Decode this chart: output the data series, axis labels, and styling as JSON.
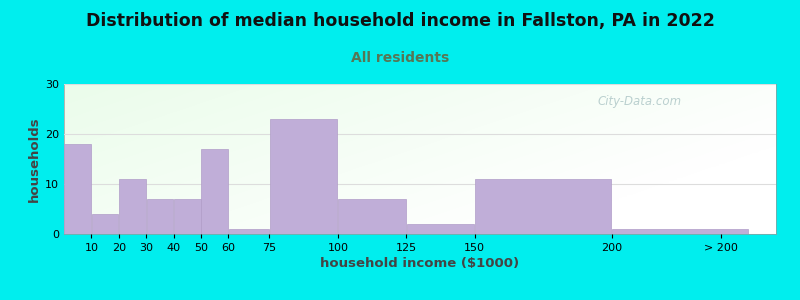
{
  "title": "Distribution of median household income in Fallston, PA in 2022",
  "subtitle": "All residents",
  "xlabel": "household income ($1000)",
  "ylabel": "households",
  "background_color": "#00EEEE",
  "bar_color": "#c0aed8",
  "bar_edge_color": "#b09cc8",
  "categories": [
    "10",
    "20",
    "30",
    "40",
    "50",
    "60",
    "75",
    "100",
    "125",
    "150",
    "200",
    "> 200"
  ],
  "values": [
    18,
    4,
    11,
    7,
    7,
    17,
    1,
    23,
    7,
    2,
    11,
    1
  ],
  "bar_widths": [
    10,
    10,
    10,
    10,
    10,
    10,
    15,
    25,
    25,
    25,
    50,
    50
  ],
  "bar_lefts": [
    0,
    10,
    20,
    30,
    40,
    50,
    60,
    75,
    100,
    125,
    150,
    200
  ],
  "ylim": [
    0,
    30
  ],
  "yticks": [
    0,
    10,
    20,
    30
  ],
  "xtick_labels": [
    "10",
    "20",
    "30",
    "40",
    "50",
    "60",
    "75",
    "100",
    "125",
    "150",
    "200",
    "> 200"
  ],
  "xtick_positions": [
    10,
    20,
    30,
    40,
    50,
    60,
    75,
    100,
    125,
    150,
    200,
    240
  ],
  "xlim_left": 0,
  "xlim_right": 260,
  "title_fontsize": 12.5,
  "subtitle_fontsize": 10,
  "axis_label_fontsize": 9.5,
  "tick_fontsize": 8,
  "watermark_text": "City-Data.com",
  "grid_color": "#dddddd",
  "title_color": "#111111",
  "subtitle_color": "#557755"
}
